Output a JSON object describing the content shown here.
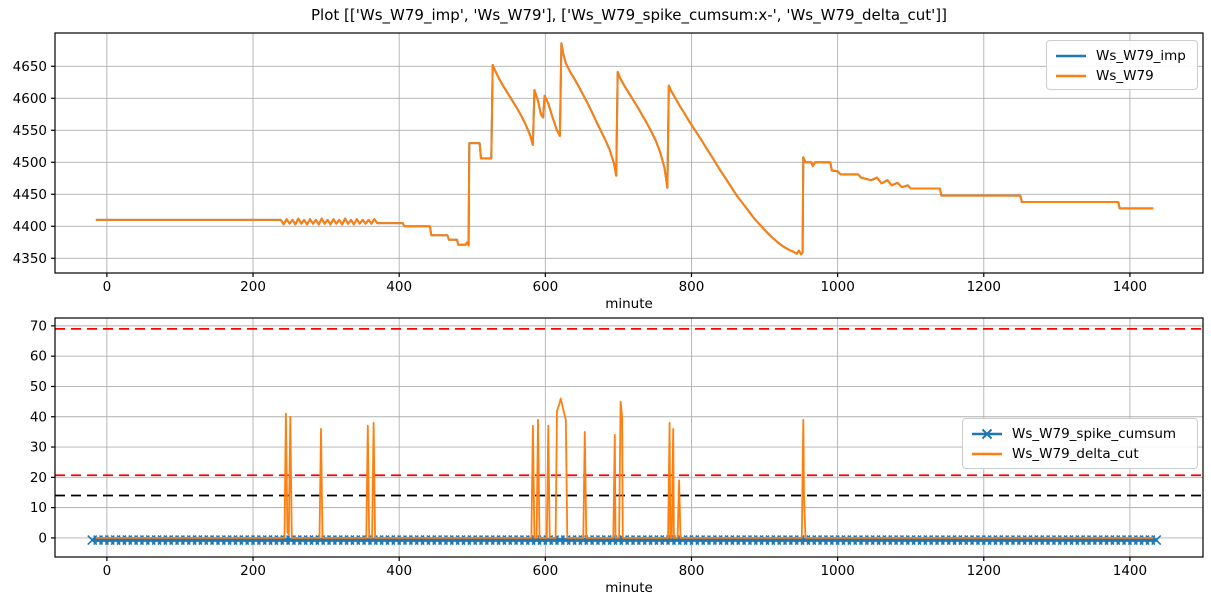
{
  "figure": {
    "title": "Plot [['Ws_W79_imp', 'Ws_W79'], ['Ws_W79_spike_cumsum:x-', 'Ws_W79_delta_cut']]"
  },
  "colors": {
    "blue": "#1f77b4",
    "orange": "#ff7f0e",
    "red": "#ff0000",
    "black": "#000000",
    "grid": "#b0b0b0",
    "spine": "#000000",
    "text": "#000000",
    "legend_border": "#cccccc"
  },
  "top_legend": {
    "entries": [
      {
        "label": "Ws_W79_imp",
        "color": "#1f77b4",
        "marker": ""
      },
      {
        "label": "Ws_W79",
        "color": "#ff7f0e",
        "marker": ""
      }
    ]
  },
  "bottom_legend": {
    "entries": [
      {
        "label": "Ws_W79_spike_cumsum",
        "color": "#1f77b4",
        "marker": "x"
      },
      {
        "label": "Ws_W79_delta_cut",
        "color": "#ff7f0e",
        "marker": ""
      }
    ]
  },
  "chart_data": [
    {
      "type": "line",
      "xlabel": "minute",
      "xlim": [
        -71,
        1500
      ],
      "ylim": [
        4327,
        4702
      ],
      "xticks": [
        0,
        200,
        400,
        600,
        800,
        1000,
        1200,
        1400
      ],
      "yticks": [
        4350,
        4400,
        4450,
        4500,
        4550,
        4600,
        4650
      ],
      "grid": true,
      "legend_position": "upper right",
      "series": [
        {
          "name": "Ws_W79_imp",
          "color": "#1f77b4",
          "linewidth": 2,
          "marker": "",
          "points": {
            "same_as": "Ws_W79"
          }
        },
        {
          "name": "Ws_W79",
          "color": "#ff7f0e",
          "linewidth": 2,
          "marker": "",
          "points": [
            [
              -15,
              4410
            ],
            [
              238,
              4410
            ],
            [
              242,
              4403
            ],
            [
              246,
              4411
            ],
            [
              250,
              4404
            ],
            [
              254,
              4410
            ],
            [
              258,
              4403
            ],
            [
              262,
              4412
            ],
            [
              266,
              4404
            ],
            [
              270,
              4410
            ],
            [
              274,
              4403
            ],
            [
              278,
              4411
            ],
            [
              282,
              4404
            ],
            [
              286,
              4410
            ],
            [
              290,
              4403
            ],
            [
              294,
              4412
            ],
            [
              298,
              4404
            ],
            [
              302,
              4410
            ],
            [
              306,
              4403
            ],
            [
              310,
              4411
            ],
            [
              314,
              4404
            ],
            [
              318,
              4410
            ],
            [
              322,
              4403
            ],
            [
              326,
              4412
            ],
            [
              330,
              4404
            ],
            [
              334,
              4410
            ],
            [
              338,
              4403
            ],
            [
              342,
              4411
            ],
            [
              346,
              4404
            ],
            [
              350,
              4410
            ],
            [
              354,
              4404
            ],
            [
              358,
              4410
            ],
            [
              362,
              4404
            ],
            [
              366,
              4411
            ],
            [
              370,
              4405
            ],
            [
              405,
              4405
            ],
            [
              407,
              4400
            ],
            [
              442,
              4400
            ],
            [
              444,
              4386
            ],
            [
              466,
              4386
            ],
            [
              468,
              4379
            ],
            [
              479,
              4379
            ],
            [
              481,
              4371
            ],
            [
              491,
              4371
            ],
            [
              493,
              4375
            ],
            [
              495,
              4370
            ],
            [
              496,
              4530
            ],
            [
              510,
              4530
            ],
            [
              512,
              4506
            ],
            [
              526,
              4506
            ],
            [
              528,
              4652
            ],
            [
              531,
              4644
            ],
            [
              537,
              4630
            ],
            [
              543,
              4618
            ],
            [
              549,
              4607
            ],
            [
              555,
              4596
            ],
            [
              561,
              4585
            ],
            [
              567,
              4573
            ],
            [
              573,
              4559
            ],
            [
              579,
              4543
            ],
            [
              583,
              4527
            ],
            [
              585,
              4613
            ],
            [
              590,
              4596
            ],
            [
              594,
              4575
            ],
            [
              597,
              4570
            ],
            [
              599,
              4604
            ],
            [
              604,
              4592
            ],
            [
              610,
              4570
            ],
            [
              616,
              4550
            ],
            [
              620,
              4541
            ],
            [
              622,
              4686
            ],
            [
              624,
              4672
            ],
            [
              628,
              4655
            ],
            [
              634,
              4641
            ],
            [
              640,
              4630
            ],
            [
              646,
              4618
            ],
            [
              652,
              4605
            ],
            [
              658,
              4592
            ],
            [
              664,
              4578
            ],
            [
              670,
              4563
            ],
            [
              676,
              4549
            ],
            [
              682,
              4535
            ],
            [
              688,
              4520
            ],
            [
              694,
              4498
            ],
            [
              697,
              4479
            ],
            [
              699,
              4641
            ],
            [
              703,
              4630
            ],
            [
              709,
              4618
            ],
            [
              715,
              4607
            ],
            [
              721,
              4596
            ],
            [
              727,
              4585
            ],
            [
              733,
              4573
            ],
            [
              739,
              4561
            ],
            [
              745,
              4548
            ],
            [
              751,
              4534
            ],
            [
              757,
              4516
            ],
            [
              763,
              4492
            ],
            [
              767,
              4460
            ],
            [
              769,
              4620
            ],
            [
              772,
              4612
            ],
            [
              778,
              4600
            ],
            [
              784,
              4588
            ],
            [
              790,
              4577
            ],
            [
              798,
              4562
            ],
            [
              806,
              4548
            ],
            [
              814,
              4534
            ],
            [
              822,
              4519
            ],
            [
              830,
              4505
            ],
            [
              838,
              4490
            ],
            [
              846,
              4476
            ],
            [
              854,
              4462
            ],
            [
              862,
              4448
            ],
            [
              870,
              4436
            ],
            [
              878,
              4424
            ],
            [
              886,
              4412
            ],
            [
              894,
              4402
            ],
            [
              902,
              4392
            ],
            [
              910,
              4383
            ],
            [
              918,
              4375
            ],
            [
              926,
              4368
            ],
            [
              934,
              4363
            ],
            [
              940,
              4360
            ],
            [
              944,
              4357
            ],
            [
              947,
              4362
            ],
            [
              950,
              4356
            ],
            [
              952,
              4359
            ],
            [
              953,
              4508
            ],
            [
              956,
              4500
            ],
            [
              964,
              4500
            ],
            [
              966,
              4494
            ],
            [
              969,
              4500
            ],
            [
              990,
              4500
            ],
            [
              992,
              4487
            ],
            [
              1000,
              4486
            ],
            [
              1004,
              4481
            ],
            [
              1028,
              4481
            ],
            [
              1032,
              4476
            ],
            [
              1046,
              4472
            ],
            [
              1054,
              4476
            ],
            [
              1060,
              4467
            ],
            [
              1068,
              4472
            ],
            [
              1074,
              4464
            ],
            [
              1082,
              4468
            ],
            [
              1088,
              4461
            ],
            [
              1096,
              4464
            ],
            [
              1100,
              4459
            ],
            [
              1140,
              4459
            ],
            [
              1142,
              4448
            ],
            [
              1250,
              4448
            ],
            [
              1252,
              4438
            ],
            [
              1384,
              4438
            ],
            [
              1386,
              4428
            ],
            [
              1432,
              4428
            ]
          ]
        }
      ]
    },
    {
      "type": "line",
      "xlabel": "minute",
      "xlim": [
        -71,
        1500
      ],
      "ylim": [
        -6.3,
        72.6
      ],
      "xticks": [
        0,
        200,
        400,
        600,
        800,
        1000,
        1200,
        1400
      ],
      "yticks": [
        0,
        10,
        20,
        30,
        40,
        50,
        60,
        70
      ],
      "grid": true,
      "legend_position": "center right",
      "thresholds": [
        {
          "y": 69,
          "color": "#ff0000",
          "style": "dashed"
        },
        {
          "y": 20.7,
          "color": "#ff0000",
          "style": "dashed"
        },
        {
          "y": 14,
          "color": "#000000",
          "style": "dashed"
        }
      ],
      "series": [
        {
          "name": "Ws_W79_spike_cumsum",
          "color": "#1f77b4",
          "linewidth": 3.5,
          "marker": "x",
          "marker_every": 8,
          "points": [
            [
              -20,
              -0.7
            ],
            [
              1438,
              -0.7
            ]
          ]
        },
        {
          "name": "Ws_W79_delta_cut",
          "color": "#ff7f0e",
          "linewidth": 1.8,
          "marker": "",
          "points": [
            [
              -15,
              0
            ],
            [
              243,
              0
            ],
            [
              245,
              41
            ],
            [
              247,
              2
            ],
            [
              249,
              1
            ],
            [
              251,
              40
            ],
            [
              253,
              0
            ],
            [
              291,
              0
            ],
            [
              293,
              36
            ],
            [
              295,
              0
            ],
            [
              355,
              0
            ],
            [
              357,
              37
            ],
            [
              359,
              0
            ],
            [
              363,
              0
            ],
            [
              365,
              38
            ],
            [
              367,
              0
            ],
            [
              581,
              0
            ],
            [
              583,
              37
            ],
            [
              585,
              0
            ],
            [
              588,
              0
            ],
            [
              590,
              39
            ],
            [
              592,
              0
            ],
            [
              602,
              0
            ],
            [
              604,
              37
            ],
            [
              606,
              0
            ],
            [
              614,
              0
            ],
            [
              616,
              42
            ],
            [
              619,
              44
            ],
            [
              621,
              46
            ],
            [
              623,
              44
            ],
            [
              626,
              41
            ],
            [
              628,
              39
            ],
            [
              630,
              0
            ],
            [
              652,
              0
            ],
            [
              654,
              35
            ],
            [
              656,
              0
            ],
            [
              693,
              0
            ],
            [
              695,
              34
            ],
            [
              696,
              0
            ],
            [
              701,
              0
            ],
            [
              703,
              45
            ],
            [
              705,
              40
            ],
            [
              706,
              0
            ],
            [
              768,
              0
            ],
            [
              770,
              38
            ],
            [
              771,
              0
            ],
            [
              773,
              0
            ],
            [
              775,
              36
            ],
            [
              776,
              0
            ],
            [
              781,
              0
            ],
            [
              783,
              19
            ],
            [
              785,
              0
            ],
            [
              951,
              0
            ],
            [
              953,
              39
            ],
            [
              954,
              14
            ],
            [
              956,
              0
            ],
            [
              1432,
              0
            ]
          ]
        }
      ]
    }
  ]
}
